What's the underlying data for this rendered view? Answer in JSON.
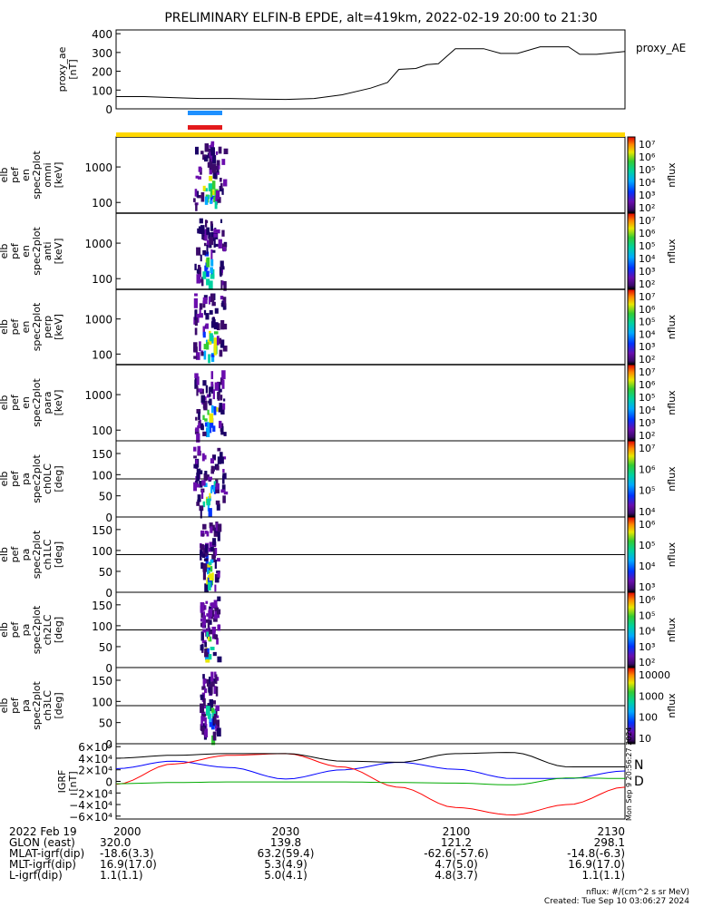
{
  "title": "PRELIMINARY ELFIN-B EPDE, alt=419km, 2022-02-19 20:00 to 21:30",
  "colors": {
    "blue_bar": "#1e90ff",
    "red_bar": "#e31a1c",
    "yellow_bar": "#ffd700",
    "grf_n": "#0000ff",
    "grf_d": "#ff0000",
    "grf_e": "#00aa00",
    "grf_tot": "#000000"
  },
  "chart_data": [
    {
      "type": "line",
      "panel": "proxy_ae",
      "legend": "proxy_AE",
      "ylabel_lines": [
        "proxy_ae",
        "[nT]"
      ],
      "ylim": [
        0,
        420
      ],
      "yticks": [
        "400",
        "300",
        "200",
        "100",
        "0"
      ],
      "x": [
        "20:00",
        "20:05",
        "20:10",
        "20:15",
        "20:20",
        "20:25",
        "20:30",
        "20:35",
        "20:40",
        "20:45",
        "20:48",
        "20:50",
        "20:53",
        "20:55",
        "20:57",
        "21:00",
        "21:02",
        "21:05",
        "21:08",
        "21:11",
        "21:15",
        "21:20",
        "21:22",
        "21:25",
        "21:30"
      ],
      "values": [
        65,
        65,
        60,
        55,
        55,
        52,
        50,
        55,
        75,
        110,
        140,
        210,
        215,
        235,
        240,
        320,
        320,
        320,
        295,
        295,
        330,
        330,
        290,
        290,
        305
      ]
    },
    {
      "type": "heatmap",
      "panel": "spec_omni",
      "ylabel_lines": [
        "elb",
        "pef",
        "en",
        "spec2plot",
        "omni",
        "[keV]"
      ],
      "yscale": "log",
      "ylim": [
        50,
        7000
      ],
      "yticks": [
        "1000",
        "100"
      ],
      "colorbar": {
        "label": "nflux",
        "ticks": [
          "10⁷",
          "10⁶",
          "10⁵",
          "10⁴",
          "10³",
          "10²"
        ]
      }
    },
    {
      "type": "heatmap",
      "panel": "spec_anti",
      "ylabel_lines": [
        "elb",
        "pef",
        "en",
        "spec2plot",
        "anti",
        "[keV]"
      ],
      "yscale": "log",
      "ylim": [
        50,
        7000
      ],
      "yticks": [
        "1000",
        "100"
      ],
      "colorbar": {
        "label": "nflux",
        "ticks": [
          "10⁷",
          "10⁶",
          "10⁵",
          "10⁴",
          "10³",
          "10²"
        ]
      }
    },
    {
      "type": "heatmap",
      "panel": "spec_perp",
      "ylabel_lines": [
        "elb",
        "pef",
        "en",
        "spec2plot",
        "perp",
        "[keV]"
      ],
      "yscale": "log",
      "ylim": [
        50,
        7000
      ],
      "yticks": [
        "1000",
        "100"
      ],
      "colorbar": {
        "label": "nflux",
        "ticks": [
          "10⁷",
          "10⁶",
          "10⁵",
          "10⁴",
          "10³",
          "10²"
        ]
      }
    },
    {
      "type": "heatmap",
      "panel": "spec_para",
      "ylabel_lines": [
        "elb",
        "pef",
        "en",
        "spec2plot",
        "para",
        "[keV]"
      ],
      "yscale": "log",
      "ylim": [
        50,
        7000
      ],
      "yticks": [
        "1000",
        "100"
      ],
      "colorbar": {
        "label": "nflux",
        "ticks": [
          "10⁷",
          "10⁶",
          "10⁵",
          "10⁴",
          "10³",
          "10²"
        ]
      }
    },
    {
      "type": "heatmap",
      "panel": "pa_ch0",
      "ylabel_lines": [
        "elb",
        "pef",
        "pa",
        "spec2plot",
        "ch0LC",
        "[deg]"
      ],
      "ylim": [
        0,
        180
      ],
      "yticks": [
        "150",
        "100",
        "50",
        "0"
      ],
      "colorbar": {
        "label": "nflux",
        "ticks": [
          "10⁷",
          "10⁶",
          "10⁵",
          "10⁴"
        ]
      }
    },
    {
      "type": "heatmap",
      "panel": "pa_ch1",
      "ylabel_lines": [
        "elb",
        "pef",
        "pa",
        "spec2plot",
        "ch1LC",
        "[deg]"
      ],
      "ylim": [
        0,
        180
      ],
      "yticks": [
        "150",
        "100",
        "50",
        "0"
      ],
      "colorbar": {
        "label": "nflux",
        "ticks": [
          "10⁶",
          "10⁵",
          "10⁴",
          "10³"
        ]
      }
    },
    {
      "type": "heatmap",
      "panel": "pa_ch2",
      "ylabel_lines": [
        "elb",
        "pef",
        "pa",
        "spec2plot",
        "ch2LC",
        "[deg]"
      ],
      "ylim": [
        0,
        180
      ],
      "yticks": [
        "150",
        "100",
        "50",
        "0"
      ],
      "colorbar": {
        "label": "nflux",
        "ticks": [
          "10⁶",
          "10⁵",
          "10⁴",
          "10³",
          "10²"
        ]
      }
    },
    {
      "type": "heatmap",
      "panel": "pa_ch3",
      "ylabel_lines": [
        "elb",
        "pef",
        "pa",
        "spec2plot",
        "ch3LC",
        "[deg]"
      ],
      "ylim": [
        0,
        180
      ],
      "yticks": [
        "150",
        "100",
        "50",
        "0"
      ],
      "colorbar": {
        "label": "nflux",
        "ticks": [
          "10000",
          "1000",
          "100",
          "10"
        ]
      }
    },
    {
      "type": "line",
      "panel": "grf",
      "ylabel_lines": [
        "IGRF",
        "[nT]"
      ],
      "ylim": [
        -65000,
        65000
      ],
      "yticks": [
        "6×10⁴",
        "4×10⁴",
        "2×10⁴",
        "0",
        "−2×10⁴",
        "−4×10⁴",
        "−6×10⁴"
      ],
      "legend": [
        "N",
        "D"
      ],
      "series": [
        {
          "name": "N",
          "x": [
            0,
            10,
            20,
            30,
            40,
            50,
            60,
            70,
            80,
            90
          ],
          "values": [
            22000,
            35000,
            24000,
            4000,
            20000,
            33000,
            21000,
            5000,
            5000,
            18000
          ]
        },
        {
          "name": "D",
          "x": [
            0,
            10,
            20,
            30,
            40,
            50,
            60,
            70,
            80,
            90
          ],
          "values": [
            -5000,
            30000,
            45000,
            48000,
            25000,
            -10000,
            -45000,
            -58000,
            -40000,
            -10000
          ]
        },
        {
          "name": "",
          "x": [
            0,
            10,
            20,
            30,
            40,
            50,
            60,
            70,
            80,
            90
          ],
          "values": [
            40000,
            45000,
            48000,
            48000,
            35000,
            33000,
            48000,
            50000,
            25000,
            25000
          ]
        },
        {
          "name": "",
          "x": [
            0,
            10,
            20,
            30,
            40,
            50,
            60,
            70,
            80,
            90
          ],
          "values": [
            -4000,
            -2000,
            -1000,
            -1000,
            -1000,
            -2000,
            -3000,
            -6000,
            6000,
            5000
          ]
        }
      ]
    }
  ],
  "side_text": {
    "created_rot": "Mon Sep 9 20:56:27 2024"
  },
  "footer": {
    "rows": [
      {
        "label": "2022 Feb 19",
        "vals": [
          "2000",
          "2030",
          "2100",
          "2130"
        ]
      },
      {
        "label": "GLON (east)",
        "vals": [
          "320.0",
          "139.8",
          "121.2",
          "298.1"
        ]
      },
      {
        "label": "MLAT-igrf(dip)",
        "vals": [
          "-18.6(3.3)",
          "63.2(59.4)",
          "-62.6(-57.6)",
          "-14.8(-6.3)"
        ]
      },
      {
        "label": "MLT-igrf(dip)",
        "vals": [
          "16.9(17.0)",
          "5.3(4.9)",
          "4.7(5.0)",
          "16.9(17.0)"
        ]
      },
      {
        "label": "L-igrf(dip)",
        "vals": [
          "1.1(1.1)",
          "5.0(4.1)",
          "4.8(3.7)",
          "1.1(1.1)"
        ]
      }
    ],
    "units_note": "nflux: #/(cm^2 s sr MeV)",
    "created": "Created: Tue Sep 10 03:06:27 2024"
  }
}
